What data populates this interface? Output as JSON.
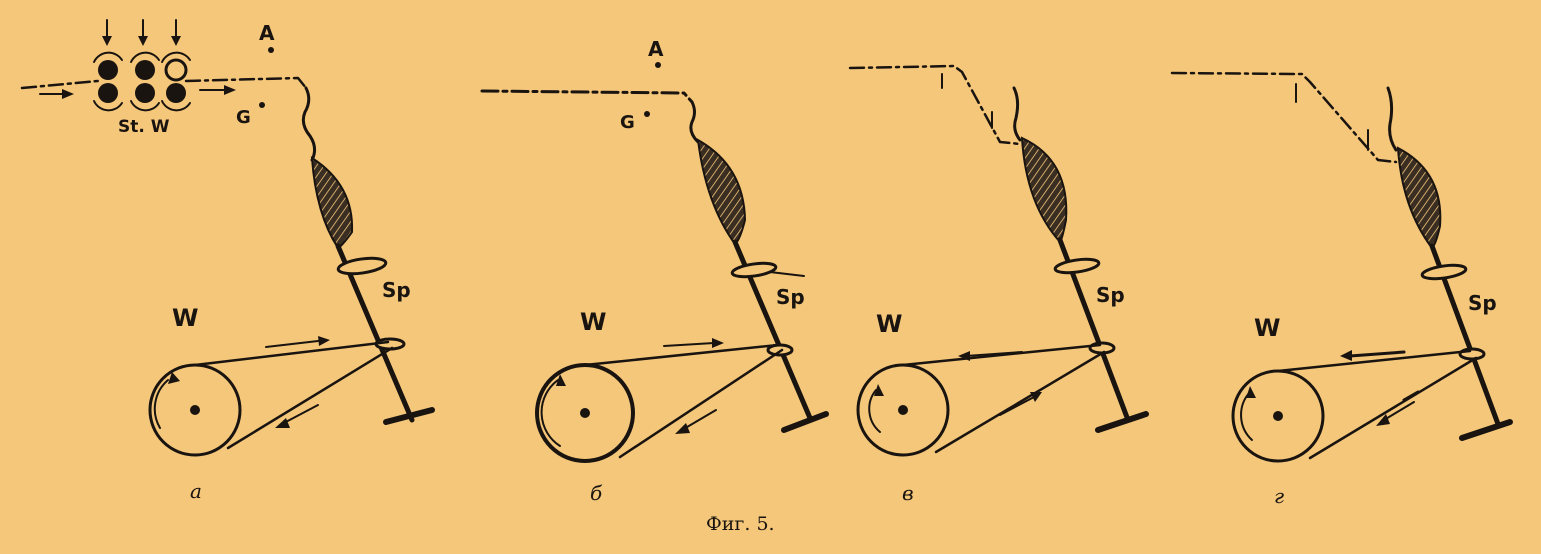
{
  "caption": "Фиг. 5.",
  "labels": {
    "rollers": "St. W",
    "point_a": "A",
    "point_g": "G",
    "spindle": "Sp",
    "wheel": "W"
  },
  "panels": [
    {
      "sub": "a"
    },
    {
      "sub": "б"
    },
    {
      "sub": "в"
    },
    {
      "sub": "г"
    }
  ],
  "colors": {
    "paper": "#f4c77a",
    "ink": "#1a1410"
  }
}
